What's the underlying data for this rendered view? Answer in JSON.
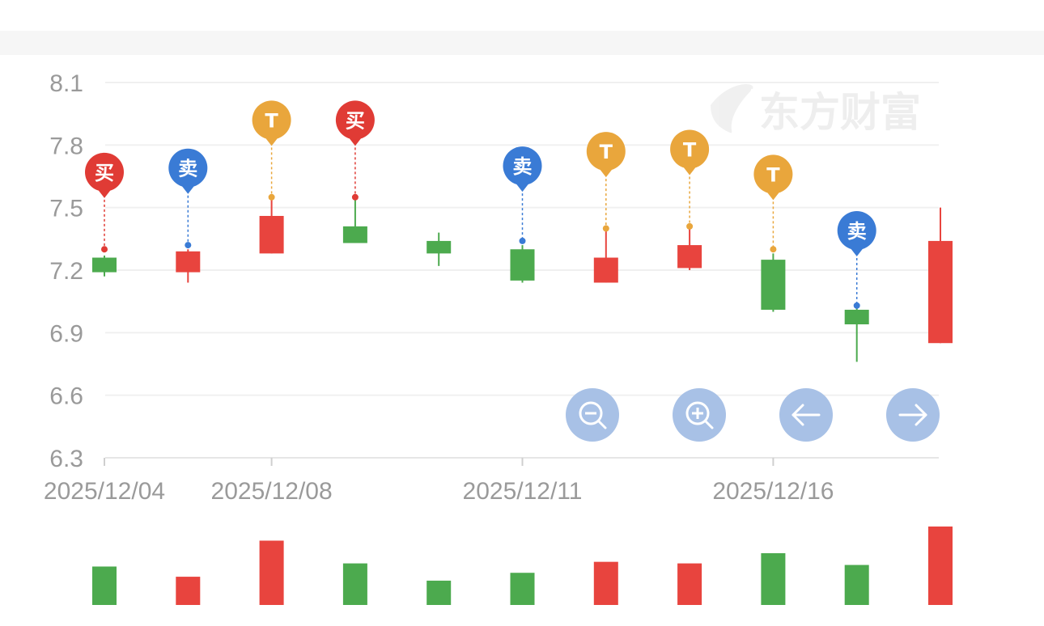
{
  "watermark": {
    "text": "东方财富"
  },
  "controls": {
    "zoom_out_icon": "zoom-out-icon",
    "zoom_in_icon": "zoom-in-icon",
    "left_icon": "arrow-left-icon",
    "right_icon": "arrow-right-icon"
  },
  "chart_data": {
    "type": "candlestick",
    "ylim": [
      6.3,
      8.1
    ],
    "y_ticks": [
      "8.1",
      "7.8",
      "7.5",
      "7.2",
      "6.9",
      "6.6",
      "6.3"
    ],
    "y_tick_values": [
      8.1,
      7.8,
      7.5,
      7.2,
      6.9,
      6.6,
      6.3
    ],
    "x_tick_labels": [
      {
        "label": "2025/12/04",
        "index": 0
      },
      {
        "label": "2025/12/08",
        "index": 2
      },
      {
        "label": "2025/12/11",
        "index": 5
      },
      {
        "label": "2025/12/16",
        "index": 8
      }
    ],
    "candles": [
      {
        "open": 7.26,
        "close": 7.19,
        "high": 7.27,
        "low": 7.17,
        "direction": "down"
      },
      {
        "open": 7.19,
        "close": 7.29,
        "high": 7.3,
        "low": 7.14,
        "direction": "up"
      },
      {
        "open": 7.28,
        "close": 7.46,
        "high": 7.54,
        "low": 7.28,
        "direction": "up"
      },
      {
        "open": 7.41,
        "close": 7.33,
        "high": 7.54,
        "low": 7.33,
        "direction": "down"
      },
      {
        "open": 7.34,
        "close": 7.28,
        "high": 7.38,
        "low": 7.22,
        "direction": "down"
      },
      {
        "open": 7.3,
        "close": 7.15,
        "high": 7.32,
        "low": 7.14,
        "direction": "down"
      },
      {
        "open": 7.14,
        "close": 7.26,
        "high": 7.4,
        "low": 7.14,
        "direction": "up"
      },
      {
        "open": 7.21,
        "close": 7.32,
        "high": 7.41,
        "low": 7.2,
        "direction": "up"
      },
      {
        "open": 7.25,
        "close": 7.01,
        "high": 7.28,
        "low": 7.0,
        "direction": "down"
      },
      {
        "open": 7.01,
        "close": 6.94,
        "high": 7.02,
        "low": 6.76,
        "direction": "down"
      },
      {
        "open": 6.85,
        "close": 7.34,
        "high": 7.5,
        "low": 6.85,
        "direction": "up"
      }
    ],
    "markers": [
      {
        "index": 0,
        "text": "买",
        "color": "#e03b35",
        "price": 7.3,
        "pin_price": 7.67
      },
      {
        "index": 1,
        "text": "卖",
        "color": "#3a7bd5",
        "price": 7.32,
        "pin_price": 7.69
      },
      {
        "index": 2,
        "text": "T",
        "color": "#e9a63c",
        "price": 7.55,
        "pin_price": 7.92
      },
      {
        "index": 3,
        "text": "买",
        "color": "#e03b35",
        "price": 7.55,
        "pin_price": 7.92
      },
      {
        "index": 5,
        "text": "卖",
        "color": "#3a7bd5",
        "price": 7.34,
        "pin_price": 7.7
      },
      {
        "index": 6,
        "text": "T",
        "color": "#e9a63c",
        "price": 7.4,
        "pin_price": 7.77
      },
      {
        "index": 7,
        "text": "T",
        "color": "#e9a63c",
        "price": 7.41,
        "pin_price": 7.78
      },
      {
        "index": 8,
        "text": "T",
        "color": "#e9a63c",
        "price": 7.3,
        "pin_price": 7.66
      },
      {
        "index": 9,
        "text": "卖",
        "color": "#3a7bd5",
        "price": 7.03,
        "pin_price": 7.39
      }
    ],
    "volume": [
      0.49,
      0.36,
      0.82,
      0.53,
      0.31,
      0.41,
      0.55,
      0.53,
      0.66,
      0.51,
      1.0
    ],
    "colors": {
      "up": "#e8443e",
      "down": "#4caa4e",
      "grid": "#f0f0f0",
      "control": "#a8c1e6"
    }
  }
}
